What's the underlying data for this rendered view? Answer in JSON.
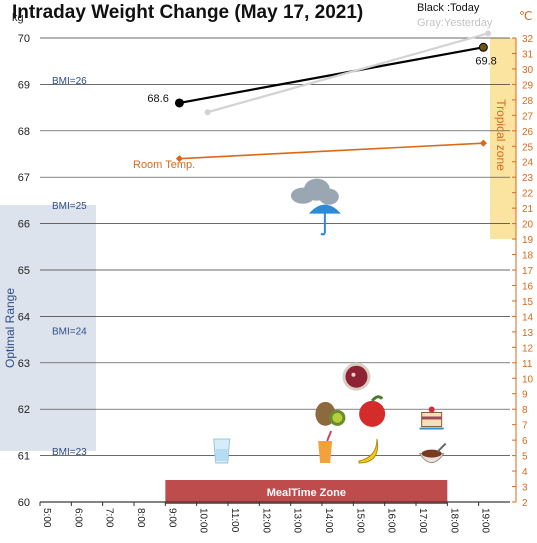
{
  "chart_data": {
    "type": "line",
    "title": "Intraday Weight Change (May 17, 2021)",
    "legend": {
      "today": "Black :Today",
      "yesterday": "Gray:Yesterday",
      "placement": "top-right"
    },
    "left_axis": {
      "unit": "kg",
      "range": [
        60,
        70
      ],
      "ticks": [
        "60",
        "61",
        "62",
        "63",
        "64",
        "65",
        "66",
        "67",
        "68",
        "69",
        "70"
      ]
    },
    "right_axis": {
      "unit": "℃",
      "range": [
        2,
        32
      ],
      "ticks": [
        "2",
        "3",
        "4",
        "5",
        "6",
        "7",
        "8",
        "9",
        "10",
        "11",
        "12",
        "13",
        "14",
        "15",
        "16",
        "17",
        "18",
        "19",
        "20",
        "21",
        "22",
        "23",
        "24",
        "25",
        "26",
        "27",
        "28",
        "29",
        "30",
        "31",
        "32"
      ]
    },
    "x_axis": {
      "range": [
        5,
        20
      ],
      "ticks": [
        "5:00",
        "6:00",
        "7:00",
        "8:00",
        "9:00",
        "10:00",
        "11:00",
        "12:00",
        "13:00",
        "14:00",
        "15:00",
        "16:00",
        "17:00",
        "18:00",
        "19:00"
      ]
    },
    "grid": true,
    "series": [
      {
        "name": "Today",
        "color": "#000000",
        "axis": "kg",
        "points": [
          {
            "x": 9.45,
            "y": 68.6,
            "label": "68.6"
          },
          {
            "x": 19.15,
            "y": 69.8,
            "label": "69.8"
          }
        ]
      },
      {
        "name": "Yesterday",
        "color": "#d3d3d3",
        "axis": "kg",
        "points": [
          {
            "x": 10.35,
            "y": 68.4
          },
          {
            "x": 19.3,
            "y": 70.1
          }
        ]
      },
      {
        "name": "Room Temp.",
        "color": "#d9691a",
        "axis": "temp",
        "points": [
          {
            "x": 9.45,
            "y": 24.2
          },
          {
            "x": 19.15,
            "y": 25.2
          }
        ]
      }
    ],
    "bmi_lines": [
      {
        "label": "BMI=26",
        "y": 69.1
      },
      {
        "label": "BMI=25",
        "y": 66.4
      },
      {
        "label": "BMI=24",
        "y": 63.7
      },
      {
        "label": "BMI=23",
        "y": 61.1
      }
    ],
    "room_temp_label": "Room Temp.",
    "zones": {
      "optimal": {
        "label": "Optimal Range",
        "from": 61.1,
        "to": 66.4
      },
      "tropical": {
        "label": "Tropical zone",
        "from": 19,
        "to": 32
      },
      "meal": {
        "label": "MealTime Zone",
        "from": 9,
        "to": 18
      }
    },
    "icons": [
      {
        "name": "cloud-umbrella-icon",
        "x": 13.9,
        "y": 66.3
      },
      {
        "name": "beet-soup-icon",
        "x": 15.1,
        "y": 62.7
      },
      {
        "name": "kiwi-icon",
        "x": 14.3,
        "y": 61.9
      },
      {
        "name": "apple-icon",
        "x": 15.6,
        "y": 61.9
      },
      {
        "name": "cake-icon",
        "x": 17.5,
        "y": 61.8
      },
      {
        "name": "water-glass-icon",
        "x": 10.8,
        "y": 61.1
      },
      {
        "name": "juice-icon",
        "x": 14.1,
        "y": 61.1
      },
      {
        "name": "banana-icon",
        "x": 15.5,
        "y": 61.1
      },
      {
        "name": "soup-bowl-icon",
        "x": 17.5,
        "y": 61.0
      }
    ]
  }
}
